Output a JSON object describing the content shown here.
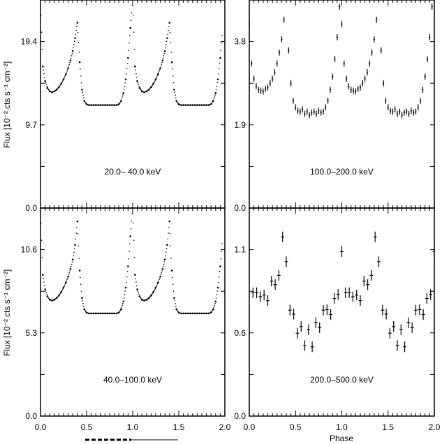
{
  "figure": {
    "ylabel": "Flux [10⁻² cts s⁻¹ cm⁻²]",
    "xlabel": "Phase",
    "legend_dashed": "",
    "colors": {
      "ink": "#000000",
      "background": "#ffffff"
    }
  },
  "chart_data": [
    {
      "type": "scatter",
      "title": "20.0– 40.0 keV",
      "panel": "top-left",
      "xlabel": "",
      "ylabel": "Flux [10⁻² cts s⁻¹ cm⁻²]",
      "xlim": [
        0,
        2
      ],
      "ylim": [
        0,
        24.25
      ],
      "yticks": [
        {
          "v": 0,
          "label": "0.0"
        },
        {
          "v": 9.7,
          "label": "9.7"
        },
        {
          "v": 19.4,
          "label": "19.4"
        }
      ],
      "xticks": [],
      "phase_step": 0.025,
      "repeat": 2,
      "values": [
        24.5,
        16.5,
        14.8,
        14.0,
        13.6,
        13.5,
        13.6,
        13.8,
        14.1,
        14.5,
        15.0,
        15.6,
        16.3,
        17.2,
        18.3,
        19.8,
        21.6,
        17.0,
        13.8,
        12.5,
        12.1,
        12.0,
        12.0,
        12.0,
        12.0,
        12.0,
        12.0,
        12.0,
        12.0,
        12.0,
        12.0,
        12.0,
        12.0,
        12.0,
        12.1,
        12.5,
        13.4,
        15.0,
        17.5,
        21.0
      ],
      "errors": null
    },
    {
      "type": "scatter",
      "title": "100.0–200.0 keV",
      "panel": "top-right",
      "xlabel": "",
      "ylabel": "",
      "xlim": [
        0,
        2
      ],
      "ylim": [
        0,
        4.75
      ],
      "yticks": [
        {
          "v": 0,
          "label": "0.0"
        },
        {
          "v": 1.9,
          "label": "1.9"
        },
        {
          "v": 3.8,
          "label": "3.8"
        }
      ],
      "xticks": [],
      "phase_step": 0.025,
      "repeat": 2,
      "values": [
        4.2,
        3.3,
        2.95,
        2.78,
        2.7,
        2.68,
        2.66,
        2.72,
        2.75,
        2.85,
        2.95,
        3.1,
        3.3,
        3.55,
        3.85,
        4.3,
        4.9,
        3.6,
        2.85,
        2.45,
        2.3,
        2.22,
        2.2,
        2.25,
        2.15,
        2.2,
        2.12,
        2.18,
        2.2,
        2.15,
        2.22,
        2.18,
        2.2,
        2.3,
        2.45,
        2.7,
        3.0,
        3.4,
        3.9,
        4.6
      ],
      "errors": 0.07
    },
    {
      "type": "scatter",
      "title": "40.0–100.0 keV",
      "panel": "bottom-left",
      "xlabel": "",
      "ylabel": "Flux [10⁻² cts s⁻¹ cm⁻²]",
      "xlim": [
        0,
        2
      ],
      "ylim": [
        0,
        13.25
      ],
      "yticks": [
        {
          "v": 0,
          "label": "0.0"
        },
        {
          "v": 5.3,
          "label": "5.3"
        },
        {
          "v": 10.6,
          "label": "10.6"
        }
      ],
      "xticks": [
        {
          "v": 0,
          "label": "0.0"
        },
        {
          "v": 0.5,
          "label": "0.5"
        },
        {
          "v": 1.0,
          "label": "1.0"
        },
        {
          "v": 1.5,
          "label": "1.5"
        },
        {
          "v": 2.0,
          "label": "2.0"
        }
      ],
      "phase_step": 0.025,
      "repeat": 2,
      "values": [
        13.4,
        9.0,
        8.07,
        7.63,
        7.41,
        7.36,
        7.41,
        7.52,
        7.68,
        7.9,
        8.18,
        8.5,
        8.88,
        9.37,
        9.97,
        10.9,
        12.4,
        9.27,
        7.52,
        6.81,
        6.59,
        6.54,
        6.54,
        6.54,
        6.54,
        6.54,
        6.54,
        6.54,
        6.54,
        6.54,
        6.54,
        6.54,
        6.54,
        6.54,
        6.59,
        6.81,
        7.3,
        8.18,
        9.54,
        11.45
      ],
      "errors": null
    },
    {
      "type": "scatter",
      "title": "200.0–500.0 keV",
      "panel": "bottom-right",
      "xlabel": "Phase",
      "ylabel": "",
      "xlim": [
        0,
        2
      ],
      "ylim": [
        0,
        1.375
      ],
      "yticks": [
        {
          "v": 0,
          "label": "0.0"
        },
        {
          "v": 0.55,
          "label": "0.6"
        },
        {
          "v": 1.1,
          "label": "1.1"
        }
      ],
      "xticks": [
        {
          "v": 0,
          "label": "0.0"
        },
        {
          "v": 0.5,
          "label": "0.5"
        },
        {
          "v": 1.0,
          "label": "1.0"
        },
        {
          "v": 1.5,
          "label": "1.5"
        },
        {
          "v": 2.0,
          "label": "2.0"
        }
      ],
      "phase_start": 0.04,
      "phase_step": 0.04,
      "repeat": 2,
      "values": [
        0.815,
        0.815,
        0.789,
        0.8,
        0.763,
        0.892,
        0.869,
        0.93,
        1.184,
        1.02,
        0.7,
        0.674,
        0.548,
        0.592,
        0.466,
        0.571,
        0.458,
        0.617,
        0.584,
        0.7,
        0.704,
        0.671,
        0.777,
        0.804,
        1.087
      ],
      "errors": 0.035
    }
  ]
}
